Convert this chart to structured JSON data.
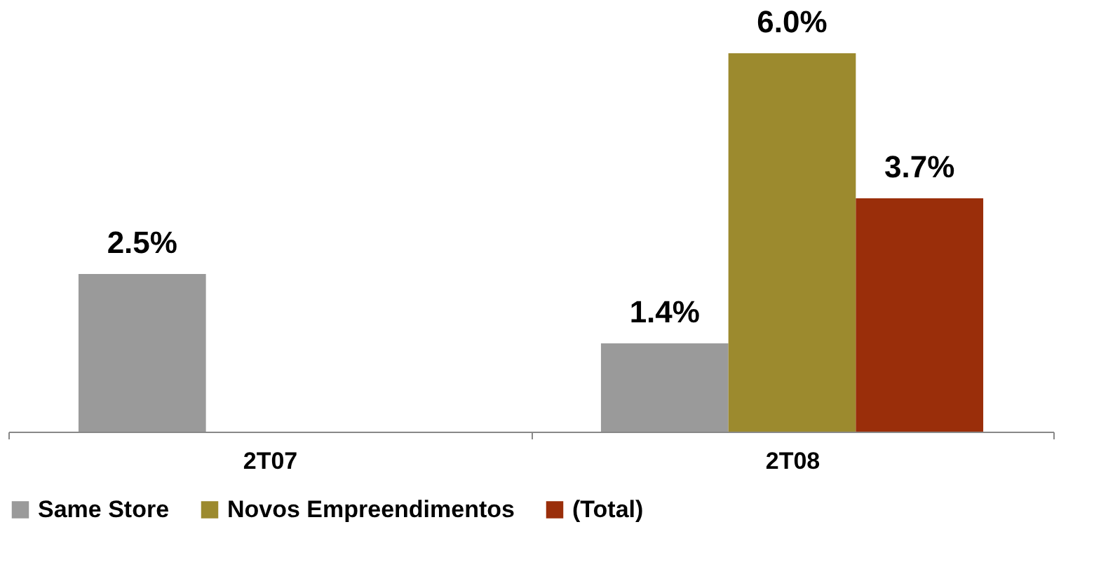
{
  "chart_data": {
    "type": "bar",
    "categories": [
      "2T07",
      "2T08"
    ],
    "series": [
      {
        "name": "Same Store",
        "color": "#9a9a9a",
        "values": [
          2.5,
          1.4
        ],
        "value_labels": [
          "2.5%",
          "1.4%"
        ]
      },
      {
        "name": "Novos Empreendimentos",
        "color": "#9c8a2e",
        "values": [
          null,
          6.0
        ],
        "value_labels": [
          null,
          "6.0%"
        ]
      },
      {
        "name": "(Total)",
        "color": "#9a2e0a",
        "values": [
          null,
          3.7
        ],
        "value_labels": [
          null,
          "3.7%"
        ]
      }
    ],
    "legend": "bottom",
    "grid": false
  }
}
